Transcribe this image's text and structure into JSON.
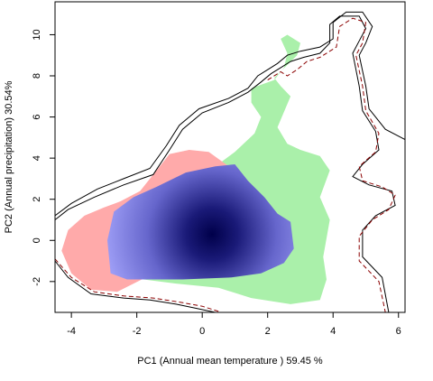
{
  "chart_data": {
    "type": "niche-overlap-density",
    "title": "",
    "xlabel": "PC1 (Annual mean temperature ) 59.45 %",
    "ylabel": "PC2 (Annual precipitation) 30.54%",
    "xlim": [
      -4.5,
      6.2
    ],
    "ylim": [
      -3.5,
      11.6
    ],
    "x_ticks": [
      -4,
      -2,
      0,
      2,
      4,
      6
    ],
    "y_ticks": [
      -2,
      0,
      2,
      4,
      6,
      8,
      10
    ],
    "grid": false,
    "legend": "none",
    "series": [
      {
        "role": "species-1-only occupancy",
        "color": "#ffaaaa",
        "polygon": [
          [
            -4.3,
            -0.5
          ],
          [
            -4.1,
            0.5
          ],
          [
            -3.6,
            1.2
          ],
          [
            -3.0,
            1.6
          ],
          [
            -2.5,
            1.9
          ],
          [
            -1.9,
            2.4
          ],
          [
            -1.5,
            3.2
          ],
          [
            -1.2,
            3.8
          ],
          [
            -1.0,
            4.2
          ],
          [
            -0.4,
            4.4
          ],
          [
            0.2,
            4.3
          ],
          [
            0.9,
            3.5
          ],
          [
            0.6,
            1.0
          ],
          [
            -0.3,
            -0.6
          ],
          [
            -1.6,
            -1.7
          ],
          [
            -2.6,
            -2.5
          ],
          [
            -3.4,
            -2.4
          ],
          [
            -4.0,
            -1.6
          ]
        ]
      },
      {
        "role": "species-2-only occupancy",
        "color": "#aaf0aa",
        "polygon": [
          [
            -1.8,
            -1.9
          ],
          [
            -1.2,
            -0.6
          ],
          [
            -0.8,
            1.5
          ],
          [
            -0.2,
            3.0
          ],
          [
            0.4,
            3.6
          ],
          [
            1.0,
            4.3
          ],
          [
            1.6,
            5.2
          ],
          [
            1.8,
            6.0
          ],
          [
            1.5,
            6.7
          ],
          [
            1.5,
            7.4
          ],
          [
            2.2,
            7.8
          ],
          [
            2.5,
            8.4
          ],
          [
            2.6,
            9.1
          ],
          [
            2.4,
            9.8
          ],
          [
            2.6,
            10.0
          ],
          [
            3.0,
            9.6
          ],
          [
            2.9,
            9.0
          ],
          [
            2.2,
            7.9
          ],
          [
            2.4,
            7.5
          ],
          [
            2.7,
            7.0
          ],
          [
            2.3,
            5.5
          ],
          [
            2.6,
            4.7
          ],
          [
            3.0,
            4.4
          ],
          [
            3.6,
            4.1
          ],
          [
            3.9,
            3.4
          ],
          [
            3.6,
            2.1
          ],
          [
            3.9,
            1.0
          ],
          [
            3.7,
            -0.8
          ],
          [
            3.8,
            -1.9
          ],
          [
            3.6,
            -2.9
          ],
          [
            2.7,
            -3.1
          ],
          [
            1.5,
            -2.8
          ],
          [
            0.5,
            -2.3
          ],
          [
            -0.8,
            -2.1
          ]
        ]
      },
      {
        "role": "overlap (shared niche) density",
        "color_low": "#aaaaff",
        "color_high": "#00004a",
        "polygon": [
          [
            -2.8,
            -1.6
          ],
          [
            -2.9,
            0.0
          ],
          [
            -2.7,
            1.4
          ],
          [
            -2.1,
            2.1
          ],
          [
            -1.4,
            2.6
          ],
          [
            -0.5,
            3.3
          ],
          [
            0.4,
            3.6
          ],
          [
            1.0,
            3.7
          ],
          [
            1.4,
            2.9
          ],
          [
            1.9,
            2.1
          ],
          [
            2.3,
            1.3
          ],
          [
            2.7,
            0.9
          ],
          [
            2.8,
            -0.4
          ],
          [
            2.5,
            -1.1
          ],
          [
            1.8,
            -1.6
          ],
          [
            0.9,
            -1.8
          ],
          [
            -0.6,
            -1.9
          ],
          [
            -1.6,
            -1.9
          ],
          [
            -2.3,
            -1.9
          ]
        ],
        "density_peak": [
          0.3,
          0.3
        ]
      },
      {
        "role": "species-1 background envelope",
        "color": "#000000",
        "line": "solid",
        "points": [
          [
            -4.5,
            1.2
          ],
          [
            -4.0,
            1.8
          ],
          [
            -3.2,
            2.5
          ],
          [
            -2.4,
            3.0
          ],
          [
            -1.6,
            3.5
          ],
          [
            -1.1,
            4.6
          ],
          [
            -0.7,
            5.6
          ],
          [
            -0.1,
            6.4
          ],
          [
            0.8,
            6.9
          ],
          [
            1.4,
            7.4
          ],
          [
            1.7,
            8.0
          ],
          [
            2.0,
            8.3
          ],
          [
            2.3,
            8.6
          ],
          [
            2.6,
            9.0
          ],
          [
            3.0,
            9.2
          ],
          [
            3.6,
            9.4
          ],
          [
            4.0,
            9.8
          ],
          [
            4.0,
            10.6
          ],
          [
            4.4,
            11.1
          ],
          [
            4.9,
            11.1
          ],
          [
            5.2,
            10.4
          ],
          [
            5.0,
            9.6
          ],
          [
            4.8,
            9.0
          ],
          [
            5.0,
            7.5
          ],
          [
            5.1,
            6.4
          ],
          [
            5.6,
            5.4
          ],
          [
            6.2,
            4.9
          ]
        ]
      },
      {
        "role": "species-2 background envelope",
        "color": "#000000",
        "line": "solid",
        "points": [
          [
            -4.5,
            1.0
          ],
          [
            -4.1,
            1.5
          ],
          [
            -3.3,
            2.1
          ],
          [
            -2.4,
            2.7
          ],
          [
            -1.5,
            3.2
          ],
          [
            -1.0,
            4.4
          ],
          [
            -0.6,
            5.4
          ],
          [
            0.0,
            6.2
          ],
          [
            0.8,
            6.7
          ],
          [
            1.4,
            7.2
          ],
          [
            1.8,
            7.7
          ],
          [
            2.1,
            8.1
          ],
          [
            2.4,
            8.4
          ],
          [
            2.7,
            8.7
          ],
          [
            3.1,
            8.9
          ],
          [
            3.6,
            9.1
          ],
          [
            3.9,
            9.6
          ],
          [
            3.9,
            10.5
          ],
          [
            4.2,
            10.9
          ],
          [
            4.8,
            10.9
          ],
          [
            5.0,
            10.3
          ],
          [
            4.8,
            9.7
          ],
          [
            4.6,
            9.1
          ],
          [
            4.8,
            7.5
          ],
          [
            4.9,
            6.3
          ],
          [
            5.3,
            5.3
          ],
          [
            5.4,
            4.4
          ],
          [
            4.9,
            3.7
          ],
          [
            4.6,
            3.1
          ],
          [
            5.1,
            2.7
          ],
          [
            5.8,
            2.4
          ],
          [
            5.9,
            1.7
          ],
          [
            5.3,
            1.2
          ],
          [
            4.9,
            0.5
          ],
          [
            4.9,
            -0.8
          ],
          [
            5.5,
            -1.8
          ],
          [
            5.7,
            -3.5
          ]
        ]
      },
      {
        "role": "species-1 background envelope (dashed)",
        "color": "#8b0000",
        "line": "dashed",
        "points": [
          [
            2.0,
            7.8
          ],
          [
            2.4,
            8.2
          ],
          [
            2.6,
            8.0
          ],
          [
            2.9,
            8.3
          ],
          [
            3.2,
            8.7
          ],
          [
            3.6,
            8.9
          ],
          [
            4.1,
            9.4
          ],
          [
            4.2,
            10.4
          ],
          [
            4.6,
            10.8
          ],
          [
            5.0,
            10.6
          ],
          [
            4.9,
            9.6
          ],
          [
            4.7,
            9.0
          ],
          [
            4.9,
            7.5
          ],
          [
            5.0,
            6.3
          ],
          [
            5.4,
            5.2
          ],
          [
            5.3,
            4.3
          ],
          [
            4.8,
            3.6
          ],
          [
            4.9,
            2.9
          ],
          [
            5.5,
            2.6
          ],
          [
            5.9,
            2.2
          ],
          [
            5.7,
            1.5
          ],
          [
            5.2,
            1.0
          ],
          [
            4.8,
            0.2
          ],
          [
            4.8,
            -1.0
          ],
          [
            5.4,
            -2.0
          ],
          [
            5.6,
            -3.5
          ]
        ]
      },
      {
        "role": "species-2 lower envelope",
        "color": "#000000",
        "line": "solid",
        "points": [
          [
            -4.5,
            -1.0
          ],
          [
            -4.1,
            -1.8
          ],
          [
            -3.4,
            -2.6
          ],
          [
            -2.4,
            -2.8
          ],
          [
            -1.6,
            -2.9
          ],
          [
            -0.8,
            -3.1
          ],
          [
            -0.2,
            -3.3
          ],
          [
            0.4,
            -3.5
          ]
        ]
      },
      {
        "role": "species-1 lower envelope (dashed)",
        "color": "#8b0000",
        "line": "dashed",
        "points": [
          [
            -4.5,
            -0.9
          ],
          [
            -4.0,
            -1.8
          ],
          [
            -3.3,
            -2.5
          ],
          [
            -2.4,
            -2.7
          ],
          [
            -1.5,
            -2.8
          ],
          [
            -0.7,
            -3.0
          ],
          [
            0.0,
            -3.2
          ],
          [
            0.5,
            -3.45
          ]
        ]
      }
    ]
  }
}
